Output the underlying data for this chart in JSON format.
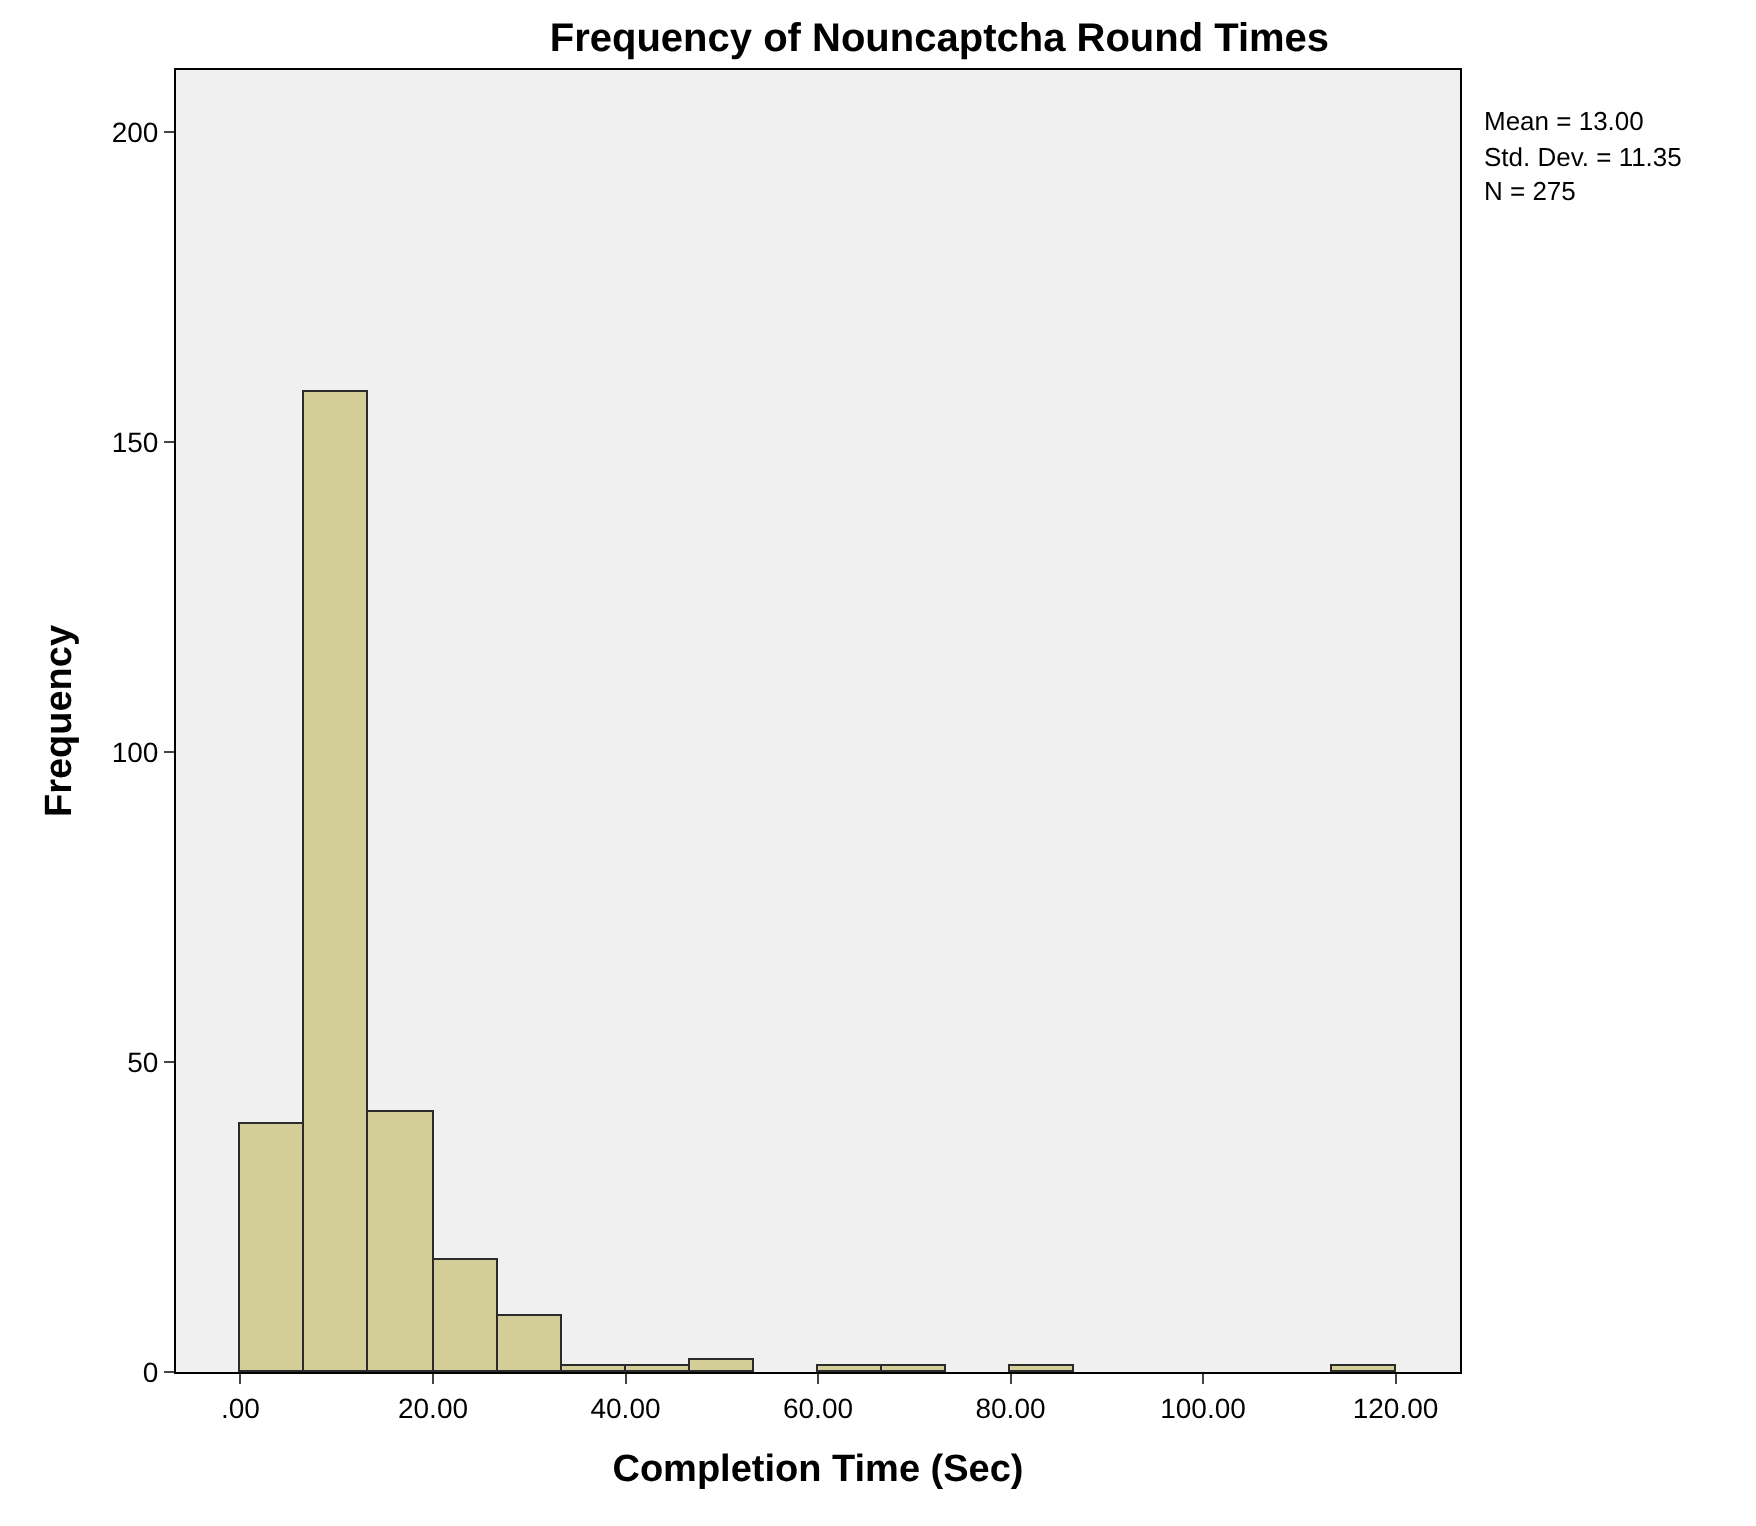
{
  "chart_data": {
    "type": "histogram",
    "title": "Frequency of Nouncaptcha Round Times",
    "xlabel": "Completion Time (Sec)",
    "ylabel": "Frequency",
    "bins": [
      0,
      6.667,
      13.333,
      20,
      26.667,
      33.333,
      40,
      46.667,
      53.333,
      60,
      66.667,
      73.333,
      80,
      86.667,
      93.333,
      100,
      106.667,
      113.333,
      120
    ],
    "values": [
      40,
      158,
      42,
      18,
      9,
      1,
      1,
      2,
      0,
      1,
      1,
      0,
      1,
      0,
      0,
      0,
      0,
      1
    ],
    "color": "#d3ce98",
    "xlim": [
      -6.7,
      126.7
    ],
    "xticks": [
      {
        "value": 0,
        "label": ".00"
      },
      {
        "value": 20,
        "label": "20.00"
      },
      {
        "value": 40,
        "label": "40.00"
      },
      {
        "value": 60,
        "label": "60.00"
      },
      {
        "value": 80,
        "label": "80.00"
      },
      {
        "value": 100,
        "label": "100.00"
      },
      {
        "value": 120,
        "label": "120.00"
      }
    ],
    "ylim": [
      0,
      210
    ],
    "yticks": [
      0,
      50,
      100,
      150,
      200
    ],
    "grid": false,
    "legend": false,
    "annotations": [
      "Mean = 13.00",
      "Std. Dev. = 11.35",
      "N = 275"
    ]
  }
}
